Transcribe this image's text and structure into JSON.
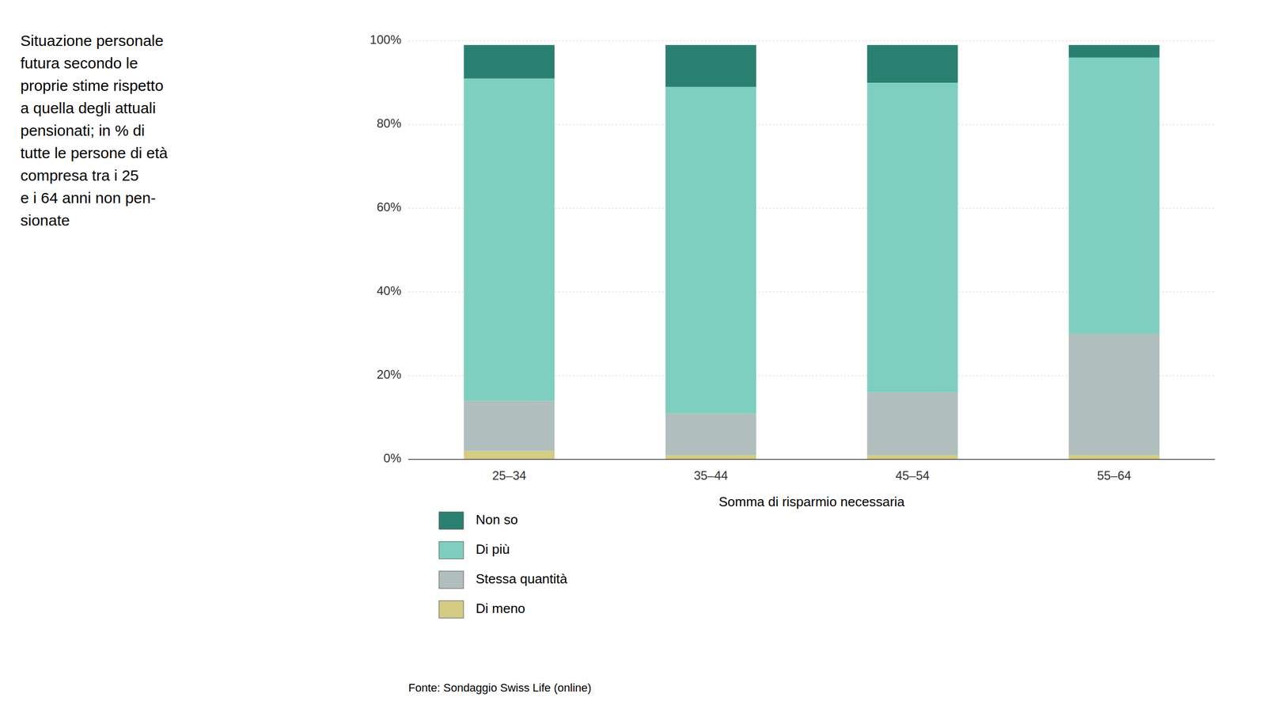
{
  "chart_data": {
    "type": "bar",
    "stacked": true,
    "title": "Situazione personale\nfutura secondo le\nproprie stime rispetto\na quella degli attuali\npensionati; in % di\ntutte le persone di età\ncompresa tra i 25\ne i 64 anni non pen-\nsionate",
    "x_label": "Somma di risparmio necessaria",
    "annotations": [
      "Fonte: Sondaggio Swiss Life (online)"
    ],
    "categories": [
      "25–34",
      "35–44",
      "45–54",
      "55–64"
    ],
    "series": [
      {
        "name": "Di meno",
        "color": "#d4cc84",
        "values": [
          2,
          1,
          1,
          1
        ]
      },
      {
        "name": "Stessa quantità",
        "color": "#b0bfbd",
        "values": [
          12,
          10,
          15,
          29
        ]
      },
      {
        "name": "Di più",
        "color": "#7ecfc0",
        "values": [
          77,
          78,
          74,
          66
        ]
      },
      {
        "name": "Non so",
        "color": "#2a8070",
        "values": [
          8,
          10,
          9,
          3
        ]
      }
    ],
    "ylim": [
      0,
      100
    ],
    "yticks": [
      {
        "value": 0,
        "label": "0%"
      },
      {
        "value": 20,
        "label": "20%"
      },
      {
        "value": 40,
        "label": "40%"
      },
      {
        "value": 60,
        "label": "60%"
      },
      {
        "value": 80,
        "label": "80%"
      },
      {
        "value": 100,
        "label": "100%"
      }
    ],
    "grid": true,
    "legend": "bottom"
  }
}
